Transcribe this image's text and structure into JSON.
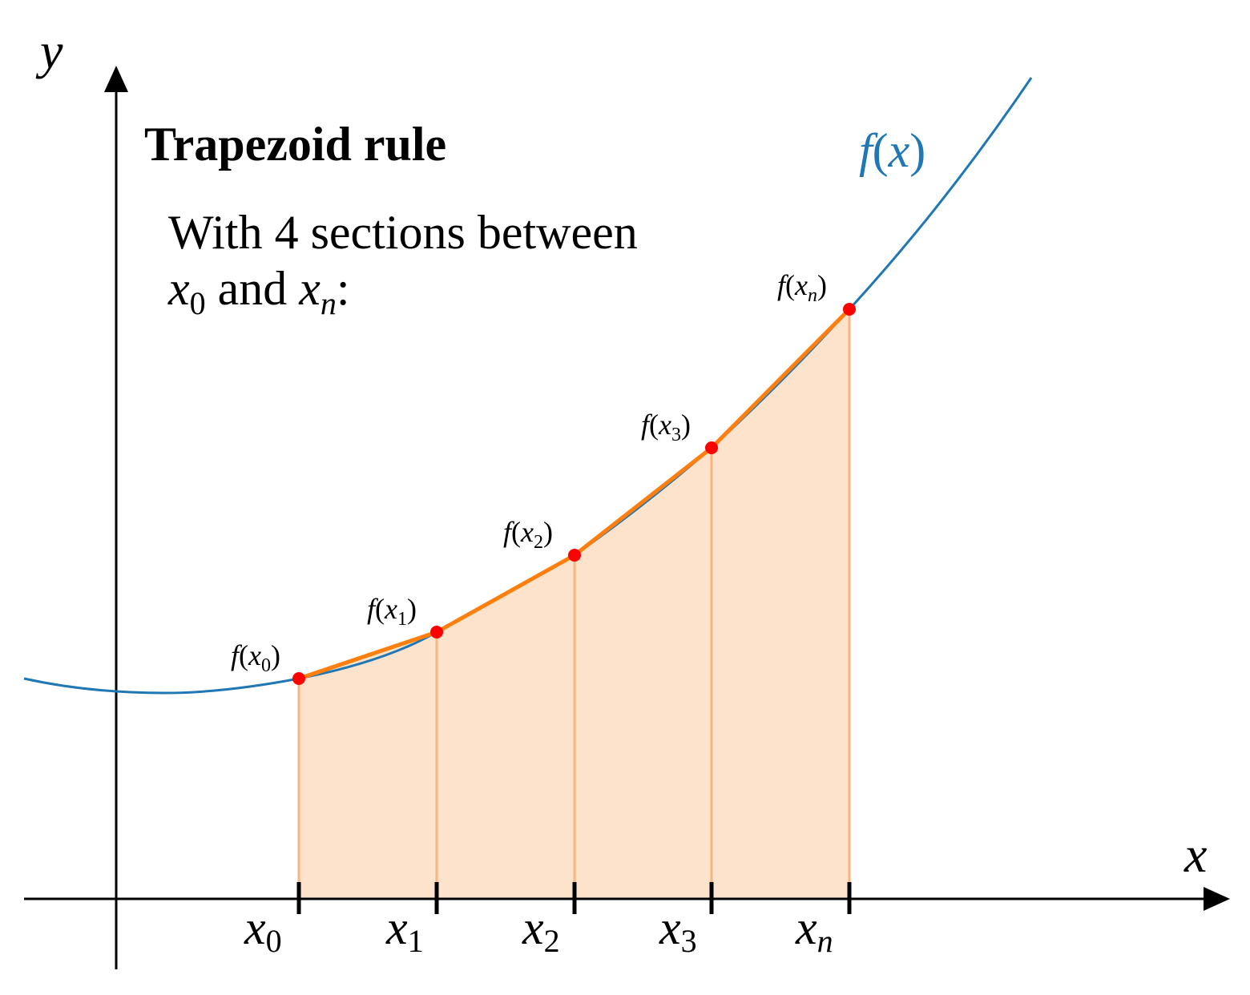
{
  "title": "Trapezoid rule",
  "description": {
    "line1": "With 4 sections between",
    "line2": {
      "a_var": "x",
      "a_sub": "0",
      "conj": " and ",
      "b_var": "x",
      "b_sub": "n",
      "end": ":"
    }
  },
  "axes": {
    "x_label": "x",
    "y_label": "y"
  },
  "curve_label": {
    "f": "f",
    "open": "(",
    "var": "x",
    "close": ")"
  },
  "points": [
    {
      "var": "x",
      "sub": "0",
      "f": "f",
      "open": "(",
      "close": ")"
    },
    {
      "var": "x",
      "sub": "1",
      "f": "f",
      "open": "(",
      "close": ")"
    },
    {
      "var": "x",
      "sub": "2",
      "f": "f",
      "open": "(",
      "close": ")"
    },
    {
      "var": "x",
      "sub": "3",
      "f": "f",
      "open": "(",
      "close": ")"
    },
    {
      "var": "x",
      "sub": "n",
      "f": "f",
      "open": "(",
      "close": ")"
    }
  ],
  "colors": {
    "curve": "#1f77b4",
    "trapezoid_line": "#ff7f0e",
    "trapezoid_fill": "#fde3cc",
    "separator": "#f9b57e",
    "point": "#ff0000",
    "axis": "#000000"
  },
  "sections": 4
}
